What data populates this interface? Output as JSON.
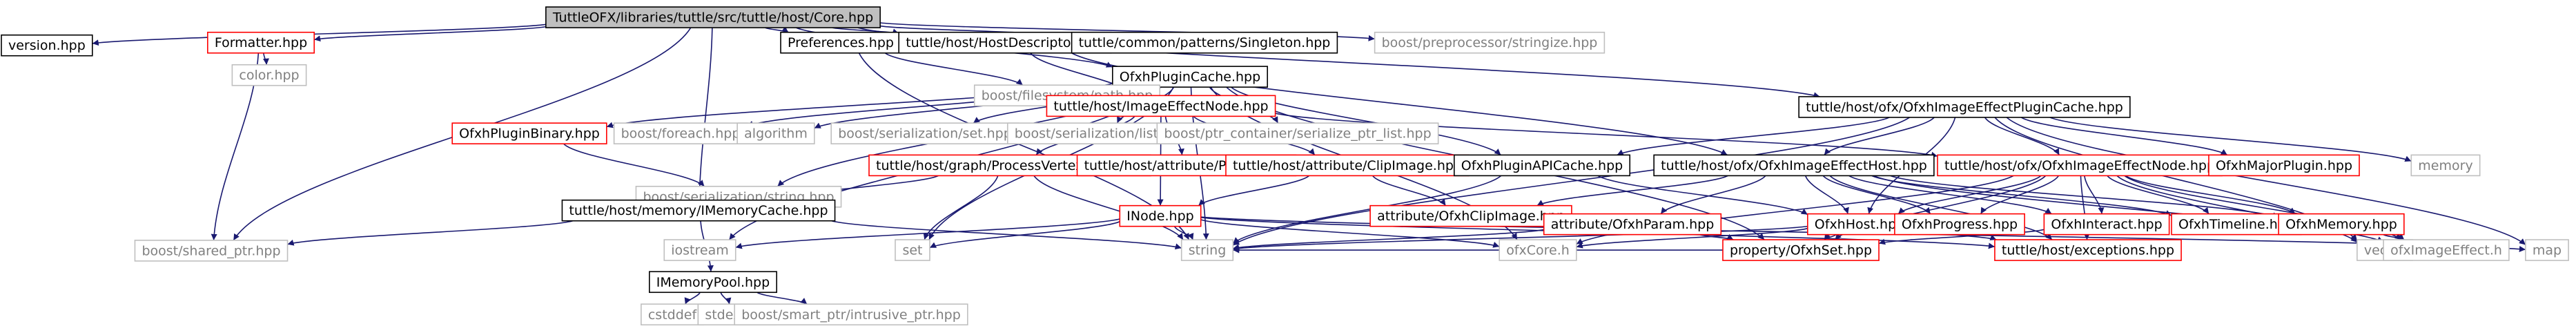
{
  "nodes": [
    {
      "id": "core",
      "label": "TuttleOFX/libraries/tuttle/src/tuttle/host/Core.hpp",
      "kind": "root"
    },
    {
      "id": "version",
      "label": "version.hpp",
      "kind": "normal"
    },
    {
      "id": "formatter",
      "label": "Formatter.hpp",
      "kind": "red"
    },
    {
      "id": "prefs",
      "label": "Preferences.hpp",
      "kind": "normal"
    },
    {
      "id": "hostdesc",
      "label": "tuttle/host/HostDescriptor.hpp",
      "kind": "normal"
    },
    {
      "id": "singleton",
      "label": "tuttle/common/patterns/Singleton.hpp",
      "kind": "normal"
    },
    {
      "id": "stringize",
      "label": "boost/preprocessor/stringize.hpp",
      "kind": "gray"
    },
    {
      "id": "colorhpp",
      "label": "color.hpp",
      "kind": "gray"
    },
    {
      "id": "pluginCache",
      "label": "OfxhPluginCache.hpp",
      "kind": "normal"
    },
    {
      "id": "fspath",
      "label": "boost/filesystem/path.hpp",
      "kind": "gray"
    },
    {
      "id": "imgEffectNodeTop",
      "label": "tuttle/host/ImageEffectNode.hpp",
      "kind": "red"
    },
    {
      "id": "ieCache",
      "label": "tuttle/host/ofx/OfxhImageEffectPluginCache.hpp",
      "kind": "normal"
    },
    {
      "id": "pluginBinary",
      "label": "OfxhPluginBinary.hpp",
      "kind": "red"
    },
    {
      "id": "foreach",
      "label": "boost/foreach.hpp",
      "kind": "gray"
    },
    {
      "id": "algorithm",
      "label": "algorithm",
      "kind": "gray"
    },
    {
      "id": "sersethpp",
      "label": "boost/serialization/set.hpp",
      "kind": "gray"
    },
    {
      "id": "serlist",
      "label": "boost/serialization/list.hpp",
      "kind": "gray"
    },
    {
      "id": "ptrlist",
      "label": "boost/ptr_container/serialize_ptr_list.hpp",
      "kind": "gray"
    },
    {
      "id": "pvd",
      "label": "tuttle/host/graph/ProcessVertexData.hpp",
      "kind": "red"
    },
    {
      "id": "attrParam",
      "label": "tuttle/host/attribute/Param.hpp",
      "kind": "red"
    },
    {
      "id": "attrClip",
      "label": "tuttle/host/attribute/ClipImage.hpp",
      "kind": "red"
    },
    {
      "id": "apiCache",
      "label": "OfxhPluginAPICache.hpp",
      "kind": "normal"
    },
    {
      "id": "ieHost",
      "label": "tuttle/host/ofx/OfxhImageEffectHost.hpp",
      "kind": "normal"
    },
    {
      "id": "ieNode",
      "label": "tuttle/host/ofx/OfxhImageEffectNode.hpp",
      "kind": "red"
    },
    {
      "id": "majorPlugin",
      "label": "OfxhMajorPlugin.hpp",
      "kind": "red"
    },
    {
      "id": "memory",
      "label": "memory",
      "kind": "gray"
    },
    {
      "id": "serstring",
      "label": "boost/serialization/string.hpp",
      "kind": "gray"
    },
    {
      "id": "imemcache",
      "label": "tuttle/host/memory/IMemoryCache.hpp",
      "kind": "normal"
    },
    {
      "id": "inode",
      "label": "INode.hpp",
      "kind": "red"
    },
    {
      "id": "ofxClipImage",
      "label": "attribute/OfxhClipImage.hpp",
      "kind": "red"
    },
    {
      "id": "ofxParam",
      "label": "attribute/OfxhParam.hpp",
      "kind": "red"
    },
    {
      "id": "ofxhHost",
      "label": "OfxhHost.hpp",
      "kind": "red"
    },
    {
      "id": "ofxhProgress",
      "label": "OfxhProgress.hpp",
      "kind": "red"
    },
    {
      "id": "ofxhInteract",
      "label": "OfxhInteract.hpp",
      "kind": "red"
    },
    {
      "id": "ofxhTimeline",
      "label": "OfxhTimeline.hpp",
      "kind": "red"
    },
    {
      "id": "ofxhMemory",
      "label": "OfxhMemory.hpp",
      "kind": "red"
    },
    {
      "id": "sharedptr",
      "label": "boost/shared_ptr.hpp",
      "kind": "gray"
    },
    {
      "id": "iostream",
      "label": "iostream",
      "kind": "gray"
    },
    {
      "id": "imempool",
      "label": "IMemoryPool.hpp",
      "kind": "normal"
    },
    {
      "id": "set",
      "label": "set",
      "kind": "gray"
    },
    {
      "id": "string",
      "label": "string",
      "kind": "gray"
    },
    {
      "id": "ofxcore",
      "label": "ofxCore.h",
      "kind": "gray"
    },
    {
      "id": "ofxhset",
      "label": "property/OfxhSet.hpp",
      "kind": "red"
    },
    {
      "id": "exceptions",
      "label": "tuttle/host/exceptions.hpp",
      "kind": "red"
    },
    {
      "id": "vector",
      "label": "vector",
      "kind": "gray"
    },
    {
      "id": "ofximgeffect",
      "label": "ofxImageEffect.h",
      "kind": "gray"
    },
    {
      "id": "map",
      "label": "map",
      "kind": "gray"
    },
    {
      "id": "cstddef",
      "label": "cstddef",
      "kind": "gray"
    },
    {
      "id": "stdexcept",
      "label": "stdexcept",
      "kind": "gray"
    },
    {
      "id": "intrusive",
      "label": "boost/smart_ptr/intrusive_ptr.hpp",
      "kind": "gray"
    }
  ],
  "edges": [
    [
      "core",
      "version"
    ],
    [
      "core",
      "formatter"
    ],
    [
      "core",
      "prefs"
    ],
    [
      "core",
      "hostdesc"
    ],
    [
      "core",
      "singleton"
    ],
    [
      "core",
      "stringize"
    ],
    [
      "core",
      "pluginCache"
    ],
    [
      "core",
      "ieCache"
    ],
    [
      "core",
      "imemcache"
    ],
    [
      "core",
      "sharedptr"
    ],
    [
      "formatter",
      "colorhpp"
    ],
    [
      "formatter",
      "sharedptr"
    ],
    [
      "prefs",
      "fspath"
    ],
    [
      "prefs",
      "string"
    ],
    [
      "hostdesc",
      "imgEffectNodeTop"
    ],
    [
      "hostdesc",
      "ieHost"
    ],
    [
      "imgEffectNodeTop",
      "pvd"
    ],
    [
      "imgEffectNodeTop",
      "attrParam"
    ],
    [
      "imgEffectNodeTop",
      "attrClip"
    ],
    [
      "imgEffectNodeTop",
      "ieNode"
    ],
    [
      "imgEffectNodeTop",
      "inode"
    ],
    [
      "pluginCache",
      "pluginBinary"
    ],
    [
      "pluginCache",
      "foreach"
    ],
    [
      "pluginCache",
      "algorithm"
    ],
    [
      "pluginCache",
      "sersethpp"
    ],
    [
      "pluginCache",
      "serlist"
    ],
    [
      "pluginCache",
      "ptrlist"
    ],
    [
      "pluginCache",
      "apiCache"
    ],
    [
      "pluginCache",
      "serstring"
    ],
    [
      "pluginCache",
      "iostream"
    ],
    [
      "pluginCache",
      "set"
    ],
    [
      "pluginCache",
      "string"
    ],
    [
      "pluginCache",
      "ofxcore"
    ],
    [
      "pluginCache",
      "ofxhset"
    ],
    [
      "pluginBinary",
      "serstring"
    ],
    [
      "ieCache",
      "apiCache"
    ],
    [
      "ieCache",
      "ieHost"
    ],
    [
      "ieCache",
      "ieNode"
    ],
    [
      "ieCache",
      "majorPlugin"
    ],
    [
      "ieCache",
      "memory"
    ],
    [
      "ieCache",
      "map"
    ],
    [
      "ieCache",
      "ofxhHost"
    ],
    [
      "ieCache",
      "string"
    ],
    [
      "ieCache",
      "vector"
    ],
    [
      "pvd",
      "imemcache"
    ],
    [
      "pvd",
      "string"
    ],
    [
      "pvd",
      "set"
    ],
    [
      "attrClip",
      "ofxClipImage"
    ],
    [
      "attrClip",
      "inode"
    ],
    [
      "apiCache",
      "ofxhHost"
    ],
    [
      "apiCache",
      "string"
    ],
    [
      "ieHost",
      "ofxhHost"
    ],
    [
      "ieHost",
      "ofxClipImage"
    ],
    [
      "ieHost",
      "ofxParam"
    ],
    [
      "ieHost",
      "ofxhProgress"
    ],
    [
      "ieHost",
      "ofxhInteract"
    ],
    [
      "ieHost",
      "ofxhTimeline"
    ],
    [
      "ieHost",
      "ofxhMemory"
    ],
    [
      "ieHost",
      "exceptions"
    ],
    [
      "ieHost",
      "ofximgeffect"
    ],
    [
      "ieNode",
      "ofxhHost"
    ],
    [
      "ieNode",
      "ofxhProgress"
    ],
    [
      "ieNode",
      "ofxhInteract"
    ],
    [
      "ieNode",
      "ofxhTimeline"
    ],
    [
      "ieNode",
      "ofxhMemory"
    ],
    [
      "ieNode",
      "exceptions"
    ],
    [
      "ieNode",
      "ofxhset"
    ],
    [
      "ieNode",
      "ofximgeffect"
    ],
    [
      "ieNode",
      "ofxcore"
    ],
    [
      "ieNode",
      "vector"
    ],
    [
      "imemcache",
      "imempool"
    ],
    [
      "imemcache",
      "string"
    ],
    [
      "imemcache",
      "sharedptr"
    ],
    [
      "inode",
      "iostream"
    ],
    [
      "inode",
      "set"
    ],
    [
      "inode",
      "string"
    ],
    [
      "inode",
      "ofxcore"
    ],
    [
      "inode",
      "exceptions"
    ],
    [
      "inode",
      "map"
    ],
    [
      "ofxParam",
      "ofxhset"
    ],
    [
      "ofxParam",
      "string"
    ],
    [
      "ofxhHost",
      "ofxcore"
    ],
    [
      "ofxhHost",
      "ofxhset"
    ],
    [
      "ofxhHost",
      "string"
    ],
    [
      "ofxhHost",
      "exceptions"
    ],
    [
      "ofxhInteract",
      "ofxhset"
    ],
    [
      "ofxhMemory",
      "ofximgeffect"
    ],
    [
      "imempool",
      "cstddef"
    ],
    [
      "imempool",
      "stdexcept"
    ],
    [
      "imempool",
      "intrusive"
    ],
    [
      "ofxhset",
      "string"
    ]
  ],
  "colors": {
    "edge": "#191970",
    "rootFill": "#bfbfbf",
    "border": "#000000",
    "redBorder": "#ff0000",
    "grayBorder": "#bfbfbf",
    "grayText": "#808080"
  }
}
